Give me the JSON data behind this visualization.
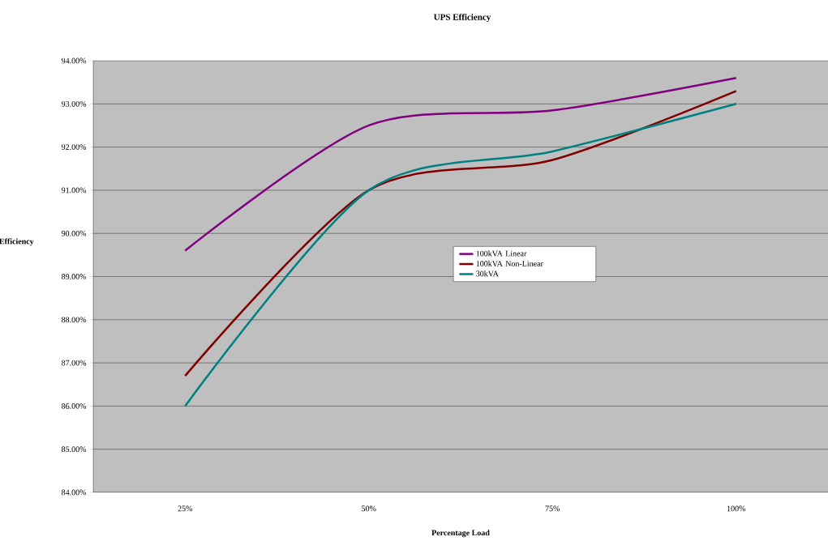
{
  "chart_data": {
    "type": "line",
    "title": "UPS Efficiency",
    "xlabel": "Percentage Load",
    "ylabel": "Efficiency",
    "categories": [
      "25%",
      "50%",
      "75%",
      "100%"
    ],
    "series": [
      {
        "name": "100kVA Linear",
        "color": "#800080",
        "values": [
          89.6,
          92.5,
          92.85,
          93.6
        ]
      },
      {
        "name": "100kVA Non-Linear",
        "color": "#800000",
        "values": [
          86.7,
          91.0,
          91.7,
          93.3
        ]
      },
      {
        "name": "30kVA",
        "color": "#008080",
        "values": [
          86.0,
          91.0,
          91.9,
          93.0
        ]
      }
    ],
    "ylim": [
      84,
      94
    ],
    "yticks": [
      {
        "value": 84,
        "label": "84.00%"
      },
      {
        "value": 85,
        "label": "85.00%"
      },
      {
        "value": 86,
        "label": "86.00%"
      },
      {
        "value": 87,
        "label": "87.00%"
      },
      {
        "value": 88,
        "label": "88.00%"
      },
      {
        "value": 89,
        "label": "89.00%"
      },
      {
        "value": 90,
        "label": "90.00%"
      },
      {
        "value": 91,
        "label": "91.00%"
      },
      {
        "value": 92,
        "label": "92.00%"
      },
      {
        "value": 93,
        "label": "93.00%"
      },
      {
        "value": 94,
        "label": "94.00%"
      }
    ],
    "grid": "y",
    "legend": "center",
    "marker": "none",
    "line_style": "solid"
  }
}
